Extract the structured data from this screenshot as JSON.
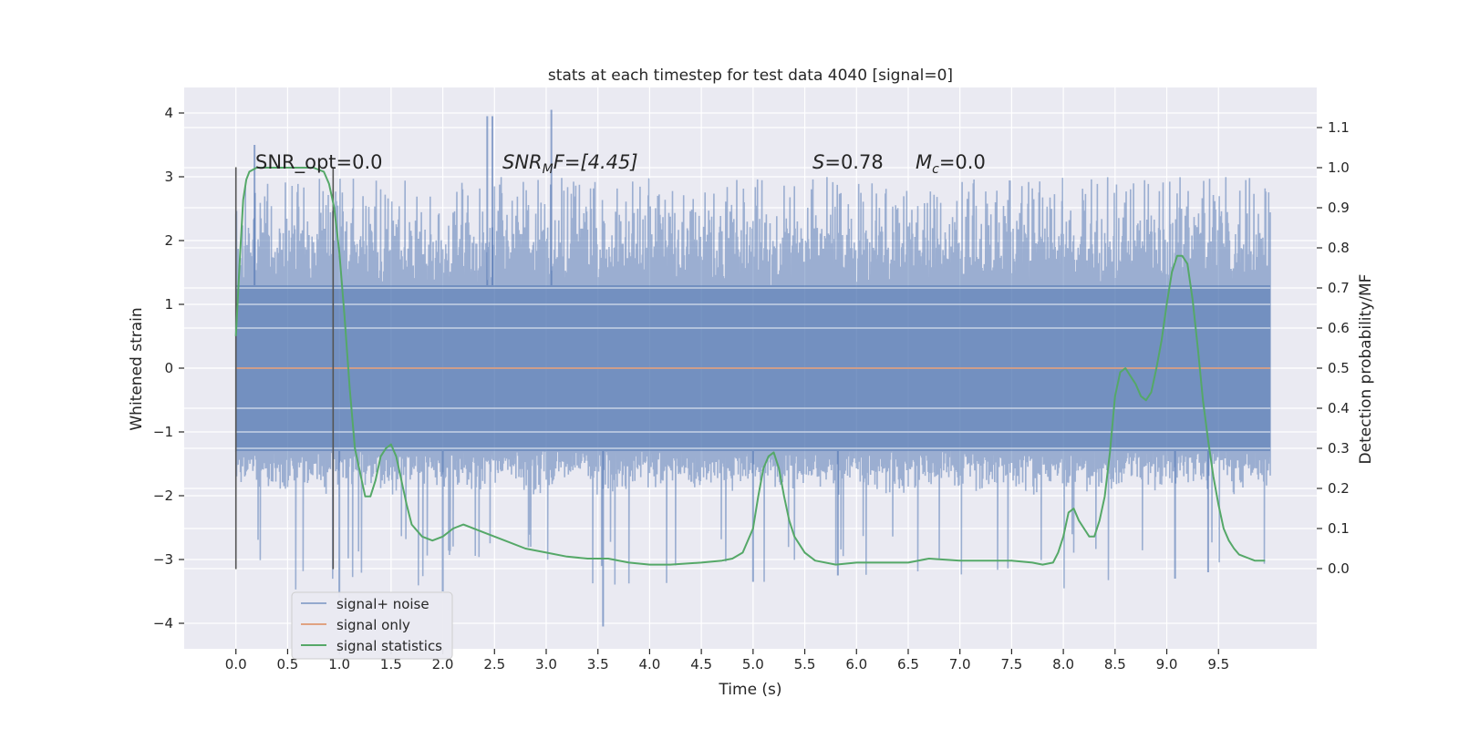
{
  "chart_data": {
    "type": "line",
    "title": "stats at each timestep for test data 4040 [signal=0]",
    "xlabel": "Time (s)",
    "ylabel_left": "Whitened strain",
    "ylabel_right": "Detection probability/MF",
    "xlim": [
      -0.5,
      10.45
    ],
    "ylim_left": [
      -4.4,
      4.4
    ],
    "ylim_right": [
      -0.2,
      1.2
    ],
    "x_ticks": [
      0.0,
      0.5,
      1.0,
      1.5,
      2.0,
      2.5,
      3.0,
      3.5,
      4.0,
      4.5,
      5.0,
      5.5,
      6.0,
      6.5,
      7.0,
      7.5,
      8.0,
      8.5,
      9.0,
      9.5
    ],
    "x_tick_labels": [
      "0.0",
      "0.5",
      "1.0",
      "1.5",
      "2.0",
      "2.5",
      "3.0",
      "3.5",
      "4.0",
      "4.5",
      "5.0",
      "5.5",
      "6.0",
      "6.5",
      "7.0",
      "7.5",
      "8.0",
      "8.5",
      "9.0",
      "9.5"
    ],
    "y_left_ticks": [
      -4,
      -3,
      -2,
      -1,
      0,
      1,
      2,
      3,
      4
    ],
    "y_left_tick_labels": [
      "−4",
      "−3",
      "−2",
      "−1",
      "0",
      "1",
      "2",
      "3",
      "4"
    ],
    "y_right_ticks": [
      0.0,
      0.1,
      0.2,
      0.3,
      0.4,
      0.5,
      0.6,
      0.7,
      0.8,
      0.9,
      1.0,
      1.1
    ],
    "y_right_tick_labels": [
      "0.0",
      "0.1",
      "0.2",
      "0.3",
      "0.4",
      "0.5",
      "0.6",
      "0.7",
      "0.8",
      "0.9",
      "1.0",
      "1.1"
    ],
    "grid": true,
    "legend_position": "lower-left",
    "annotations": {
      "snr_opt": "SNR_opt=0.0",
      "snr_mf_prefix": "SNR",
      "snr_mf_sub": "M",
      "snr_mf_suffix": "F=[4.45]",
      "s_prefix": "S",
      "s_suffix": "=0.78",
      "mc_prefix": "M",
      "mc_sub": "c",
      "mc_suffix": "=0.0"
    },
    "vertical_markers": [
      {
        "x": 0.0,
        "y_range": [
          -3.15,
          3.15
        ]
      },
      {
        "x": 0.94,
        "y_range": [
          -3.15,
          3.15
        ]
      }
    ],
    "series": [
      {
        "name": "signal+ noise",
        "color": "#4c72b0",
        "axis": "left",
        "x_range": [
          0.0,
          10.0
        ],
        "core_range": [
          -1.3,
          1.3
        ],
        "typical_extent": [
          -2.0,
          3.0
        ],
        "peaks": [
          {
            "x": 0.18,
            "y": 3.5
          },
          {
            "x": 1.0,
            "y": -3.6
          },
          {
            "x": 2.0,
            "y": -3.5
          },
          {
            "x": 2.43,
            "y": 3.95
          },
          {
            "x": 2.48,
            "y": 3.95
          },
          {
            "x": 3.05,
            "y": 4.05
          },
          {
            "x": 3.55,
            "y": -4.05
          },
          {
            "x": 5.0,
            "y": -3.35
          },
          {
            "x": 5.82,
            "y": -3.25
          },
          {
            "x": 9.08,
            "y": -3.3
          },
          {
            "x": 9.4,
            "y": -3.2
          }
        ]
      },
      {
        "name": "signal only",
        "color": "#dd8452",
        "axis": "left",
        "x": [
          0.0,
          10.0
        ],
        "y": [
          0.0,
          0.0
        ]
      },
      {
        "name": "signal statistics",
        "color": "#55a868",
        "axis": "right",
        "x": [
          0.0,
          0.04,
          0.07,
          0.1,
          0.13,
          0.2,
          0.3,
          0.5,
          0.75,
          0.85,
          0.9,
          0.95,
          1.0,
          1.05,
          1.1,
          1.15,
          1.2,
          1.25,
          1.3,
          1.35,
          1.4,
          1.45,
          1.5,
          1.55,
          1.6,
          1.65,
          1.7,
          1.8,
          1.9,
          2.0,
          2.1,
          2.2,
          2.4,
          2.6,
          2.8,
          3.0,
          3.2,
          3.4,
          3.6,
          3.8,
          4.0,
          4.2,
          4.5,
          4.7,
          4.8,
          4.9,
          5.0,
          5.05,
          5.1,
          5.15,
          5.2,
          5.25,
          5.3,
          5.35,
          5.4,
          5.5,
          5.6,
          5.8,
          6.0,
          6.2,
          6.5,
          6.7,
          7.0,
          7.3,
          7.5,
          7.7,
          7.8,
          7.9,
          7.95,
          8.0,
          8.05,
          8.1,
          8.15,
          8.2,
          8.25,
          8.3,
          8.35,
          8.4,
          8.45,
          8.5,
          8.55,
          8.6,
          8.65,
          8.7,
          8.75,
          8.8,
          8.85,
          8.9,
          8.95,
          9.0,
          9.05,
          9.1,
          9.15,
          9.2,
          9.25,
          9.3,
          9.35,
          9.4,
          9.45,
          9.5,
          9.55,
          9.6,
          9.65,
          9.7,
          9.75,
          9.8,
          9.85,
          9.9,
          9.95
        ],
        "y": [
          0.58,
          0.78,
          0.92,
          0.97,
          0.99,
          1.0,
          1.0,
          1.0,
          1.0,
          0.99,
          0.96,
          0.9,
          0.79,
          0.63,
          0.45,
          0.3,
          0.24,
          0.18,
          0.18,
          0.22,
          0.28,
          0.3,
          0.31,
          0.28,
          0.22,
          0.16,
          0.11,
          0.08,
          0.07,
          0.08,
          0.1,
          0.11,
          0.09,
          0.07,
          0.05,
          0.04,
          0.03,
          0.025,
          0.025,
          0.015,
          0.01,
          0.01,
          0.015,
          0.02,
          0.025,
          0.04,
          0.1,
          0.18,
          0.25,
          0.28,
          0.29,
          0.25,
          0.18,
          0.12,
          0.08,
          0.04,
          0.02,
          0.01,
          0.015,
          0.015,
          0.015,
          0.025,
          0.02,
          0.02,
          0.02,
          0.015,
          0.01,
          0.015,
          0.04,
          0.08,
          0.14,
          0.15,
          0.12,
          0.1,
          0.08,
          0.08,
          0.12,
          0.18,
          0.29,
          0.43,
          0.49,
          0.5,
          0.48,
          0.46,
          0.43,
          0.42,
          0.44,
          0.5,
          0.57,
          0.66,
          0.74,
          0.78,
          0.78,
          0.76,
          0.67,
          0.55,
          0.42,
          0.32,
          0.23,
          0.16,
          0.1,
          0.07,
          0.05,
          0.035,
          0.03,
          0.025,
          0.02,
          0.02,
          0.02
        ]
      }
    ]
  }
}
